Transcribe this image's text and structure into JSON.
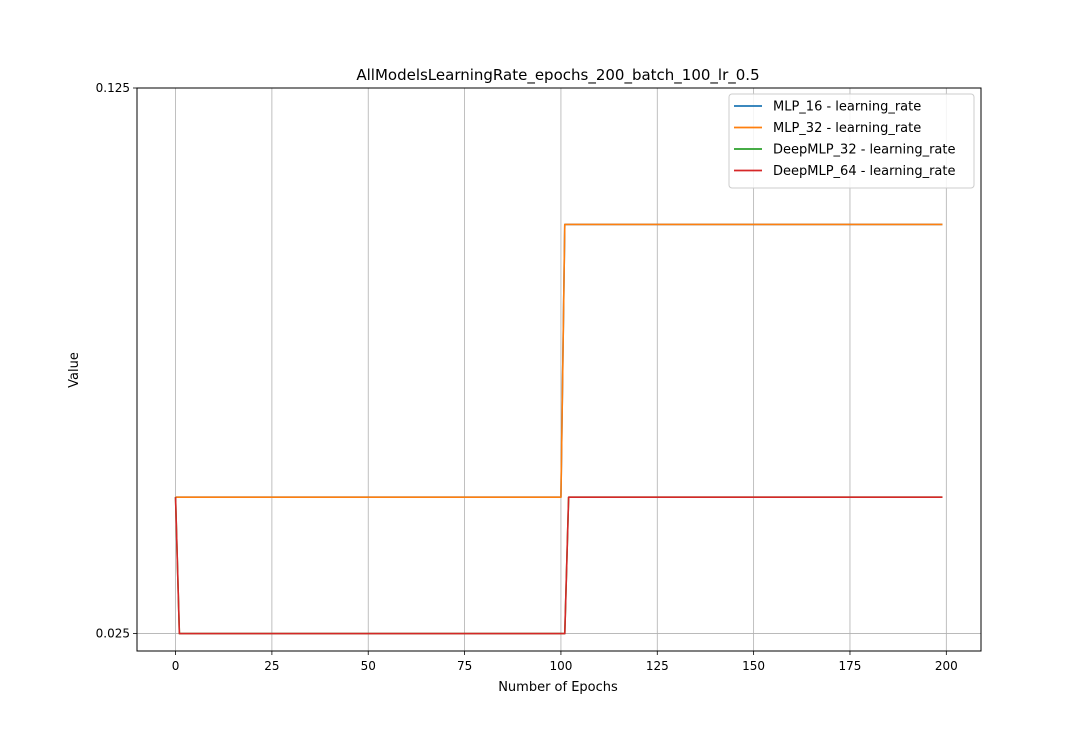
{
  "chart_data": {
    "type": "line",
    "title": "AllModelsLearningRate_epochs_200_batch_100_lr_0.5",
    "xlabel": "Number of Epochs",
    "ylabel": "Value",
    "xlim": [
      -10,
      209
    ],
    "ylim": [
      0.0218,
      0.125
    ],
    "xticks": [
      0,
      25,
      50,
      75,
      100,
      125,
      150,
      175,
      200
    ],
    "yticks": [
      0.025,
      0.125
    ],
    "ytick_labels": [
      "0.025",
      "0.125"
    ],
    "grid": true,
    "legend_position": "top-right",
    "series": [
      {
        "name": "MLP_16 - learning_rate",
        "color": "#1f77b4",
        "points": [
          [
            0,
            0.05
          ],
          [
            100,
            0.05
          ],
          [
            101,
            0.1
          ],
          [
            199,
            0.1
          ]
        ]
      },
      {
        "name": "MLP_32 - learning_rate",
        "color": "#ff7f0e",
        "points": [
          [
            0,
            0.05
          ],
          [
            100,
            0.05
          ],
          [
            101,
            0.1
          ],
          [
            199,
            0.1
          ]
        ]
      },
      {
        "name": "DeepMLP_32 - learning_rate",
        "color": "#2ca02c",
        "points": [
          [
            0,
            0.05
          ],
          [
            1,
            0.025
          ],
          [
            101,
            0.025
          ],
          [
            102,
            0.05
          ],
          [
            199,
            0.05
          ]
        ]
      },
      {
        "name": "DeepMLP_64 - learning_rate",
        "color": "#d62728",
        "points": [
          [
            0,
            0.05
          ],
          [
            1,
            0.025
          ],
          [
            101,
            0.025
          ],
          [
            102,
            0.05
          ],
          [
            199,
            0.05
          ]
        ]
      }
    ]
  }
}
